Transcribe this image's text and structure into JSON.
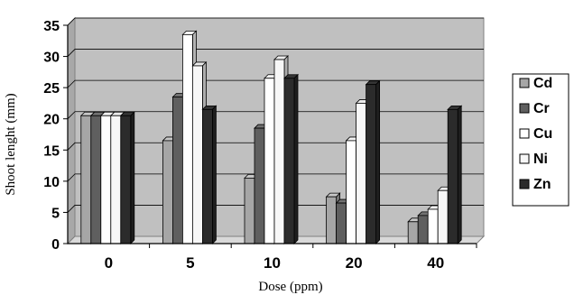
{
  "chart_data": {
    "type": "bar",
    "title": "",
    "xlabel": "Dose (ppm)",
    "ylabel": "Shoot lenght (mm)",
    "ylim": [
      0,
      35
    ],
    "yticks": [
      0,
      5,
      10,
      15,
      20,
      25,
      30,
      35
    ],
    "categories": [
      "0",
      "5",
      "10",
      "20",
      "40"
    ],
    "series": [
      {
        "name": "Cd",
        "values": [
          20.5,
          16.5,
          10.5,
          7.5,
          3.5
        ],
        "color": "#a6a6a6"
      },
      {
        "name": "Cr",
        "values": [
          20.5,
          23.5,
          18.5,
          6.5,
          4.5
        ],
        "color": "#5f5f5f"
      },
      {
        "name": "Cu",
        "values": [
          20.5,
          33.5,
          26.5,
          16.5,
          5.5
        ],
        "color": "#ffffff"
      },
      {
        "name": "Ni",
        "values": [
          20.5,
          28.5,
          29.5,
          22.5,
          8.5
        ],
        "color": "#f7f7f7"
      },
      {
        "name": "Zn",
        "values": [
          20.5,
          21.5,
          26.5,
          25.5,
          21.5
        ],
        "color": "#2b2b2b"
      }
    ],
    "grid": true,
    "legend_position": "right",
    "plot_background": "#c0c0c0"
  }
}
